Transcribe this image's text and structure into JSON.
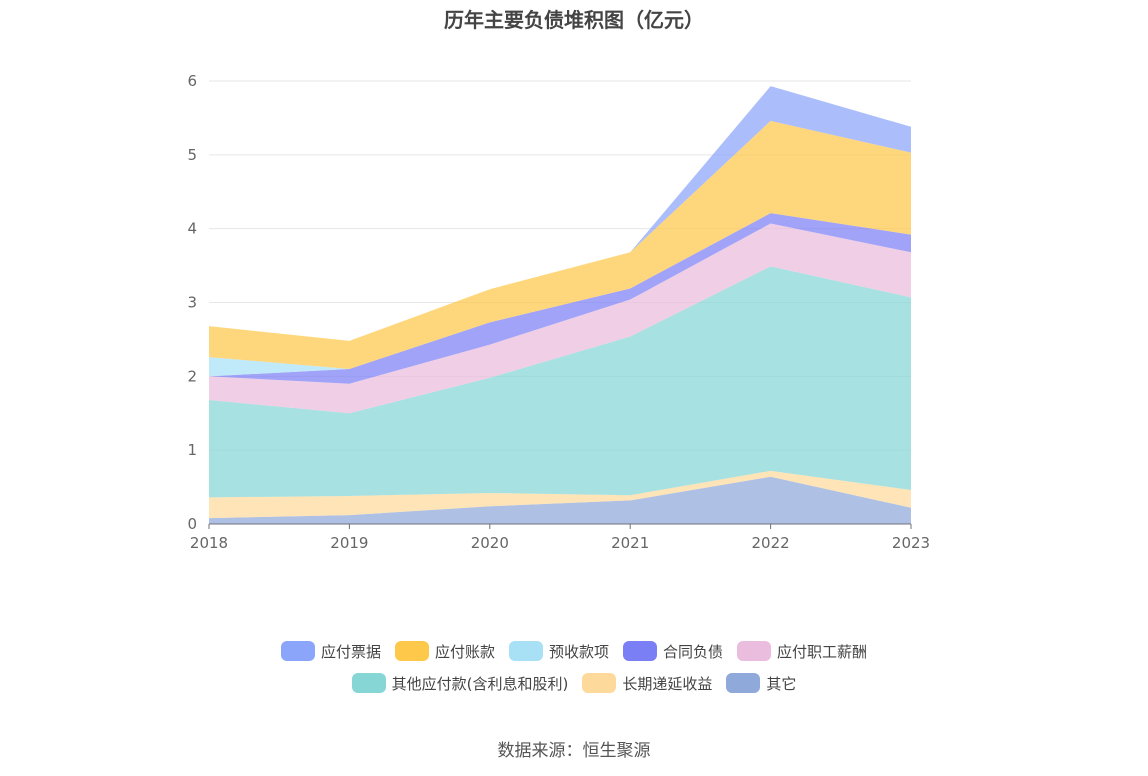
{
  "title": "历年主要负债堆积图（亿元）",
  "source": "数据来源：恒生聚源",
  "chart_data": {
    "type": "area",
    "stacked": true,
    "categories": [
      "2018",
      "2019",
      "2020",
      "2021",
      "2022",
      "2023"
    ],
    "y_ticks": [
      "0",
      "1",
      "2",
      "3",
      "4",
      "5",
      "6"
    ],
    "ylim": [
      0,
      6
    ],
    "grid": true,
    "legend_position": "bottom",
    "series": [
      {
        "name": "其它",
        "color": "#8FA9DB",
        "values": [
          0.08,
          0.12,
          0.24,
          0.32,
          0.64,
          0.22
        ]
      },
      {
        "name": "长期递延收益",
        "color": "#FDD99B",
        "values": [
          0.28,
          0.26,
          0.18,
          0.07,
          0.08,
          0.24
        ]
      },
      {
        "name": "其他应付款(含利息和股利)",
        "color": "#86D6D6",
        "values": [
          1.32,
          1.12,
          1.56,
          2.15,
          2.77,
          2.61
        ]
      },
      {
        "name": "应付职工薪酬",
        "color": "#EABCDD",
        "values": [
          0.32,
          0.4,
          0.45,
          0.5,
          0.58,
          0.61
        ]
      },
      {
        "name": "合同负债",
        "color": "#7B7FF5",
        "values": [
          0.0,
          0.2,
          0.3,
          0.15,
          0.14,
          0.24
        ]
      },
      {
        "name": "预收款项",
        "color": "#A8E0F6",
        "values": [
          0.26,
          0.0,
          0.0,
          0.0,
          0.0,
          0.0
        ]
      },
      {
        "name": "应付账款",
        "color": "#FEC84B",
        "values": [
          0.42,
          0.38,
          0.45,
          0.49,
          1.25,
          1.11
        ]
      },
      {
        "name": "应付票据",
        "color": "#8AA5FA",
        "values": [
          0.0,
          0.0,
          0.0,
          0.0,
          0.47,
          0.35
        ]
      }
    ],
    "legend_rows": [
      [
        "应付票据",
        "应付账款",
        "预收款项",
        "合同负债",
        "应付职工薪酬"
      ],
      [
        "其他应付款(含利息和股利)",
        "长期递延收益",
        "其它"
      ]
    ]
  }
}
